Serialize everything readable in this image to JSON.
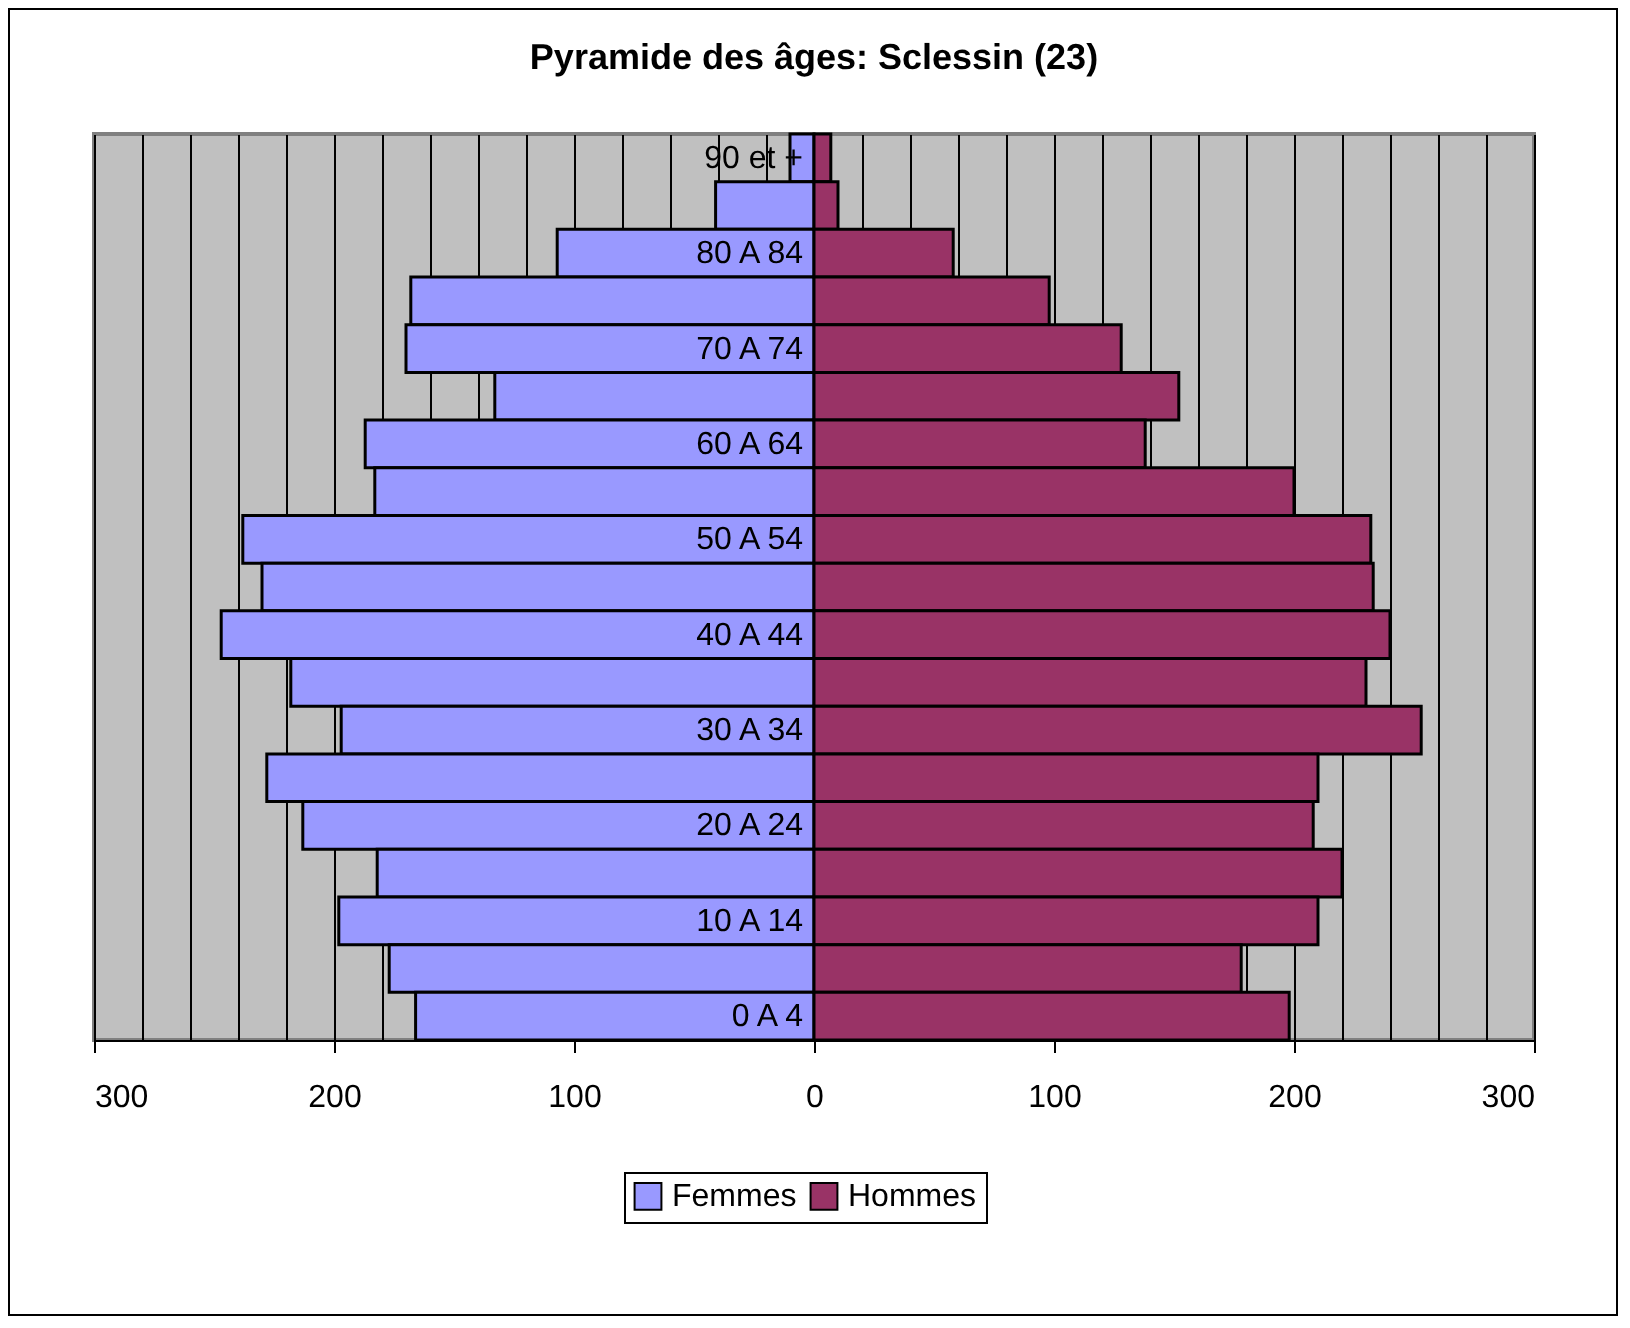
{
  "chart_data": {
    "type": "bar",
    "orientation": "horizontal",
    "stacked": true,
    "title": "Pyramide des âges: Sclessin (23)",
    "categories": [
      "90 et +",
      null,
      "80 A 84",
      null,
      "70 A 74",
      null,
      "60 A 64",
      null,
      "50 A 54",
      null,
      "40 A 44",
      null,
      "30 A 34",
      null,
      "20 A 24",
      null,
      "10 A 14",
      null,
      "0 A 4"
    ],
    "series": [
      {
        "name": "Femmes",
        "color": "#9999ff",
        "values": [
          -10,
          -41,
          -107,
          -168,
          -170,
          -133,
          -187,
          -183,
          -238,
          -230,
          -247,
          -218,
          -197,
          -228,
          -213,
          -182,
          -198,
          -177,
          -166
        ]
      },
      {
        "name": "Hommes",
        "color": "#993366",
        "values": [
          7,
          10,
          58,
          98,
          128,
          152,
          138,
          200,
          232,
          233,
          240,
          230,
          253,
          210,
          208,
          220,
          210,
          178,
          198
        ]
      }
    ],
    "xlim": [
      -300,
      300
    ],
    "xticks": [
      {
        "value": -300,
        "label": "300"
      },
      {
        "value": -280,
        "label": null
      },
      {
        "value": -260,
        "label": null
      },
      {
        "value": -240,
        "label": null
      },
      {
        "value": -220,
        "label": null
      },
      {
        "value": -200,
        "label": "200"
      },
      {
        "value": -180,
        "label": null
      },
      {
        "value": -160,
        "label": null
      },
      {
        "value": -140,
        "label": null
      },
      {
        "value": -120,
        "label": null
      },
      {
        "value": -100,
        "label": "100"
      },
      {
        "value": -80,
        "label": null
      },
      {
        "value": -60,
        "label": null
      },
      {
        "value": -40,
        "label": null
      },
      {
        "value": -20,
        "label": null
      },
      0,
      {
        "value": 20,
        "label": null
      },
      {
        "value": 40,
        "label": null
      },
      {
        "value": 60,
        "label": null
      },
      {
        "value": 80,
        "label": null
      },
      100,
      {
        "value": 120,
        "label": null
      },
      {
        "value": 140,
        "label": null
      },
      {
        "value": 160,
        "label": null
      },
      {
        "value": 180,
        "label": null
      },
      200,
      {
        "value": 220,
        "label": null
      },
      {
        "value": 240,
        "label": null
      },
      {
        "value": 260,
        "label": null
      },
      {
        "value": 280,
        "label": null
      },
      300
    ],
    "grid": true,
    "legend": "bottom"
  }
}
